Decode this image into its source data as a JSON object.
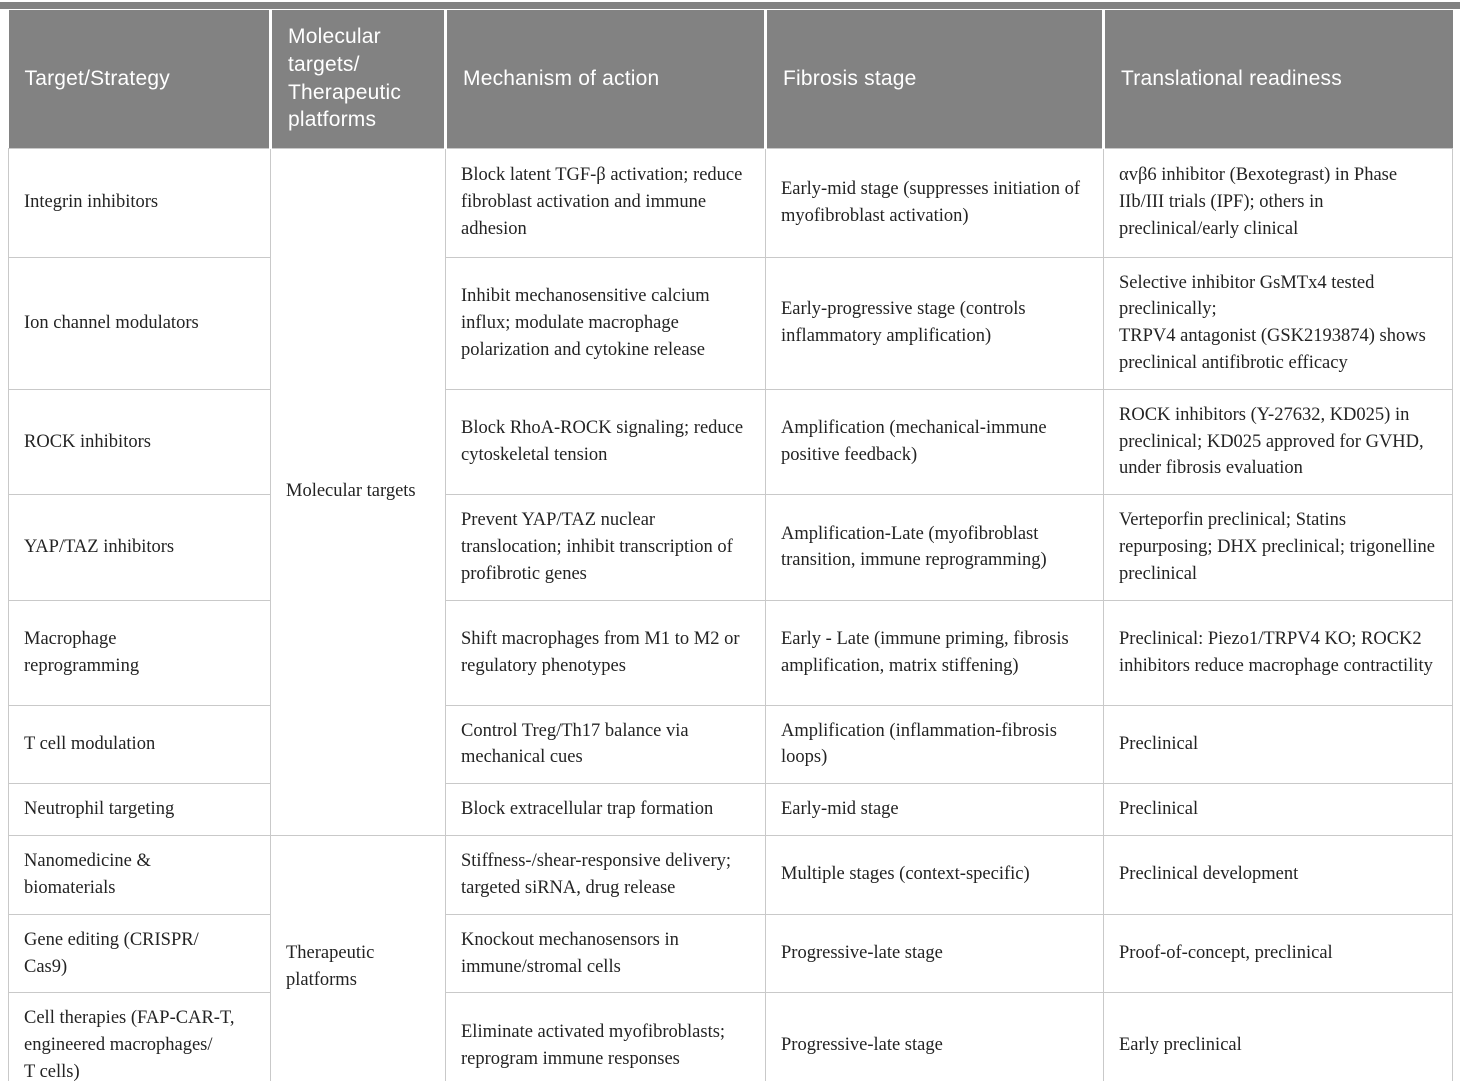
{
  "table": {
    "headers": [
      {
        "label": "Target/Strategy"
      },
      {
        "label": "Molecular targets/\nTherapeutic platforms"
      },
      {
        "label": "Mechanism of action"
      },
      {
        "label": "Fibrosis stage"
      },
      {
        "label": "Translational readiness"
      }
    ],
    "groups": [
      {
        "label": "Molecular targets",
        "rows": [
          {
            "target": "Integrin inhibitors",
            "mechanism": "Block latent TGF-β activation; reduce fibroblast activation and immune adhesion",
            "stage": "Early-mid stage (suppresses initiation of myofibroblast activation)",
            "readiness": "αvβ6 inhibitor (Bexotegrast) in Phase IIb/III trials (IPF); others in preclinical/early clinical"
          },
          {
            "target": "Ion channel modulators",
            "mechanism": "Inhibit mechanosensitive calcium influx; modulate macrophage polarization and cytokine release",
            "stage": "Early-progressive stage (controls inflammatory amplification)",
            "readiness": "Selective inhibitor GsMTx4 tested preclinically;\nTRPV4 antagonist (GSK2193874) shows preclinical antifibrotic efficacy"
          },
          {
            "target": "ROCK inhibitors",
            "mechanism": "Block RhoA-ROCK signaling; reduce cytoskeletal tension",
            "stage": "Amplification (mechanical-immune positive feedback)",
            "readiness": "ROCK inhibitors (Y-27632, KD025) in preclinical; KD025 approved for GVHD, under fibrosis evaluation"
          },
          {
            "target": "YAP/TAZ inhibitors",
            "mechanism": "Prevent YAP/TAZ nuclear translocation; inhibit transcription of profibrotic genes",
            "stage": "Amplification-Late (myofibroblast transition, immune reprogramming)",
            "readiness": "Verteporfin preclinical; Statins repurposing; DHX preclinical; trigonelline preclinical"
          },
          {
            "target": "Macrophage\nreprogramming",
            "mechanism": "Shift macrophages from M1 to M2 or regulatory phenotypes",
            "stage": "Early - Late (immune priming, fibrosis amplification, matrix stiffening)",
            "readiness": "Preclinical: Piezo1/TRPV4 KO; ROCK2 inhibitors reduce macrophage contractility"
          },
          {
            "target": "T cell modulation",
            "mechanism": "Control Treg/Th17 balance via mechanical cues",
            "stage": "Amplification (inflammation-fibrosis loops)",
            "readiness": "Preclinical"
          },
          {
            "target": "Neutrophil targeting",
            "mechanism": "Block extracellular trap formation",
            "stage": "Early-mid stage",
            "readiness": "Preclinical"
          }
        ]
      },
      {
        "label": "Therapeutic platforms",
        "rows": [
          {
            "target": "Nanomedicine &\nbiomaterials",
            "mechanism": "Stiffness-/shear-responsive delivery; targeted siRNA, drug release",
            "stage": "Multiple stages (context-specific)",
            "readiness": "Preclinical development"
          },
          {
            "target": "Gene editing (CRISPR/\nCas9)",
            "mechanism": "Knockout mechanosensors in immune/stromal cells",
            "stage": "Progressive-late stage",
            "readiness": "Proof-of-concept, preclinical"
          },
          {
            "target": "Cell therapies (FAP-CAR-T,\nengineered macrophages/\nT cells)",
            "mechanism": "Eliminate activated myofibroblasts; reprogram immune responses",
            "stage": "Progressive-late stage",
            "readiness": "Early preclinical"
          }
        ]
      }
    ],
    "colors": {
      "header_bg": "#828282",
      "header_text": "#ffffff",
      "body_text": "#232323",
      "border": "#c9c9c9"
    }
  }
}
